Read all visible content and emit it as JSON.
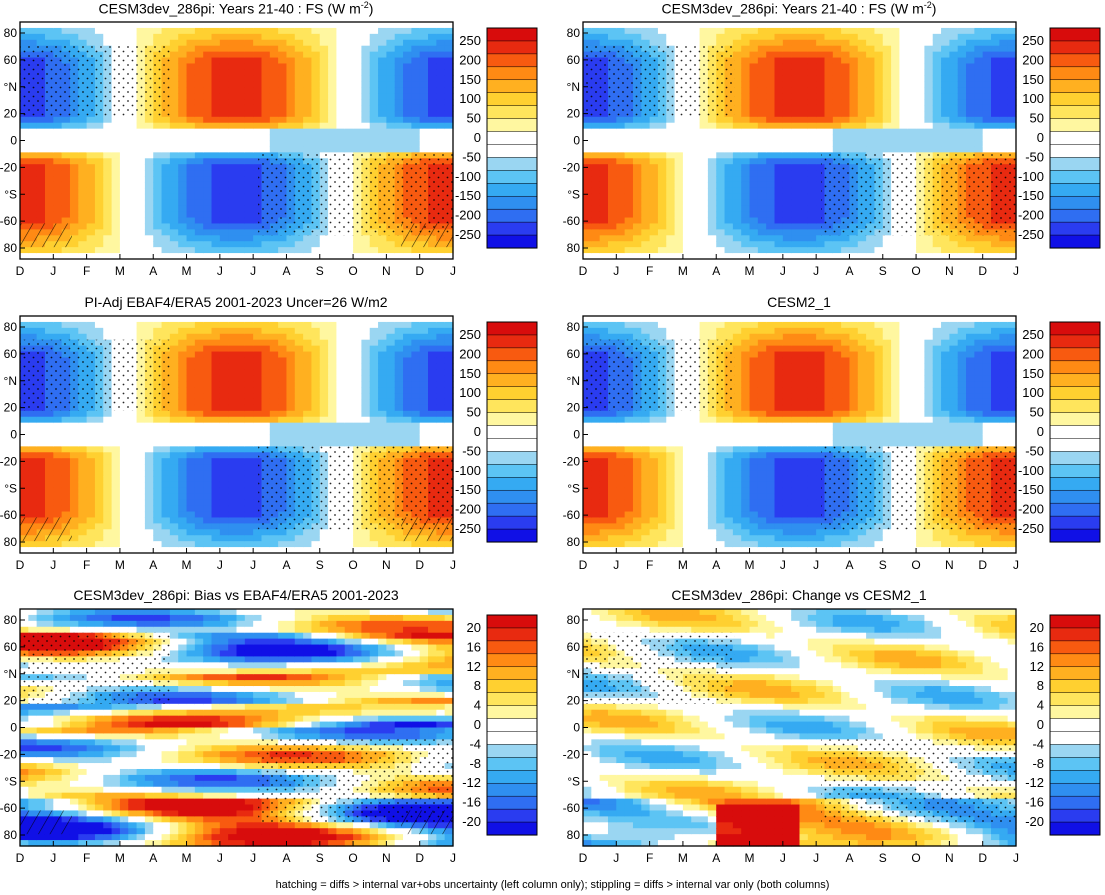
{
  "chart_data": [
    {
      "type": "heatmap",
      "title": "CESM3dev_286pi: Years 21-40 : FS (W m",
      "title_sup": "-2",
      "title_end": ")",
      "x_ticks": [
        "D",
        "J",
        "F",
        "M",
        "A",
        "M",
        "J",
        "J",
        "A",
        "S",
        "O",
        "N",
        "D",
        "J"
      ],
      "y_ticks": [
        "80",
        "60",
        "°N",
        "20",
        "0",
        "-20",
        "°S",
        "-60",
        "80"
      ],
      "colorbar_labels": [
        "250",
        "200",
        "150",
        "100",
        "50",
        "0",
        "-50",
        "-100",
        "-150",
        "-200",
        "-250"
      ],
      "zlim": [
        -275,
        275
      ],
      "pattern": "annual",
      "hatching": true
    },
    {
      "type": "heatmap",
      "title": "CESM3dev_286pi: Years 21-40 : FS (W m",
      "title_sup": "-2",
      "title_end": ")",
      "x_ticks": [
        "D",
        "J",
        "F",
        "M",
        "A",
        "M",
        "J",
        "J",
        "A",
        "S",
        "O",
        "N",
        "D",
        "J"
      ],
      "y_ticks": [
        "80",
        "60",
        "°N",
        "20",
        "0",
        "-20",
        "°S",
        "-60",
        "80"
      ],
      "colorbar_labels": [
        "250",
        "200",
        "150",
        "100",
        "50",
        "0",
        "-50",
        "-100",
        "-150",
        "-200",
        "-250"
      ],
      "zlim": [
        -275,
        275
      ],
      "pattern": "annual",
      "hatching": false
    },
    {
      "type": "heatmap",
      "title": "PI-Adj EBAF4/ERA5 2001-2023 Uncer=26 W/m2",
      "x_ticks": [
        "D",
        "J",
        "F",
        "M",
        "A",
        "M",
        "J",
        "J",
        "A",
        "S",
        "O",
        "N",
        "D",
        "J"
      ],
      "y_ticks": [
        "80",
        "60",
        "°N",
        "20",
        "0",
        "-20",
        "°S",
        "-60",
        "80"
      ],
      "colorbar_labels": [
        "250",
        "200",
        "150",
        "100",
        "50",
        "0",
        "-50",
        "-100",
        "-150",
        "-200",
        "-250"
      ],
      "zlim": [
        -275,
        275
      ],
      "pattern": "annual",
      "hatching": true
    },
    {
      "type": "heatmap",
      "title": "CESM2_1",
      "x_ticks": [
        "D",
        "J",
        "F",
        "M",
        "A",
        "M",
        "J",
        "J",
        "A",
        "S",
        "O",
        "N",
        "D",
        "J"
      ],
      "y_ticks": [
        "80",
        "60",
        "°N",
        "20",
        "0",
        "-20",
        "°S",
        "-60",
        "80"
      ],
      "colorbar_labels": [
        "250",
        "200",
        "150",
        "100",
        "50",
        "0",
        "-50",
        "-100",
        "-150",
        "-200",
        "-250"
      ],
      "zlim": [
        -275,
        275
      ],
      "pattern": "annual",
      "hatching": false
    },
    {
      "type": "heatmap",
      "title": "CESM3dev_286pi: Bias vs EBAF4/ERA5 2001-2023",
      "x_ticks": [
        "D",
        "J",
        "F",
        "M",
        "A",
        "M",
        "J",
        "J",
        "A",
        "S",
        "O",
        "N",
        "D",
        "J"
      ],
      "y_ticks": [
        "80",
        "60",
        "°N",
        "20",
        "0",
        "-20",
        "°S",
        "-60",
        "80"
      ],
      "colorbar_labels": [
        "20",
        "16",
        "12",
        "8",
        "4",
        "0",
        "-4",
        "-8",
        "-12",
        "-16",
        "-20"
      ],
      "zlim": [
        -22,
        22
      ],
      "pattern": "bias",
      "hatching": true
    },
    {
      "type": "heatmap",
      "title": "CESM3dev_286pi: Change vs CESM2_1",
      "x_ticks": [
        "D",
        "J",
        "F",
        "M",
        "A",
        "M",
        "J",
        "J",
        "A",
        "S",
        "O",
        "N",
        "D",
        "J"
      ],
      "y_ticks": [
        "80",
        "60",
        "°N",
        "20",
        "0",
        "-20",
        "°S",
        "-60",
        "80"
      ],
      "colorbar_labels": [
        "20",
        "16",
        "12",
        "8",
        "4",
        "0",
        "-4",
        "-8",
        "-12",
        "-16",
        "-20"
      ],
      "zlim": [
        -22,
        22
      ],
      "pattern": "change",
      "hatching": false
    }
  ],
  "footer": "hatching = diffs > internal var+obs uncertainty (left column only); stippling = diffs > internal var only (both columns)",
  "colors": {
    "scale": [
      "#1010e6",
      "#2a3cf0",
      "#2f6ef2",
      "#2f8ff0",
      "#35aaf2",
      "#5cc4f4",
      "#9ad6f2",
      "#ffffff",
      "#ffffff",
      "#fff7a0",
      "#ffe55c",
      "#ffd030",
      "#ffb020",
      "#ff8a14",
      "#f85a10",
      "#e82a10",
      "#d80c0c"
    ]
  }
}
